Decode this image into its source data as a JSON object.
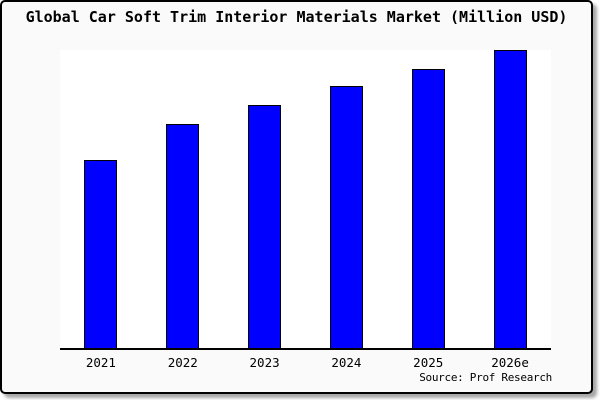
{
  "chart_data": {
    "type": "bar",
    "title": "Global Car Soft Trim Interior Materials Market (Million USD)",
    "categories": [
      "2021",
      "2022",
      "2023",
      "2024",
      "2025",
      "2026e"
    ],
    "values": [
      62.7,
      75.0,
      81.3,
      87.7,
      93.3,
      99.7
    ],
    "units": "relative index (no y-axis ticks or gridlines shown; values estimated as percent of tallest-bar scale)",
    "xlabel": "",
    "ylabel": "",
    "ylim": [
      0,
      100
    ],
    "grid": false,
    "legend": "none",
    "colors": {
      "bar_fill": "#0000ff",
      "bar_outline": "#000000",
      "plot_background": "#ffffff",
      "frame_background": "#fafafa",
      "frame_border": "#000000",
      "text": "#000000"
    }
  },
  "source": {
    "label": "Source: Prof Research"
  }
}
